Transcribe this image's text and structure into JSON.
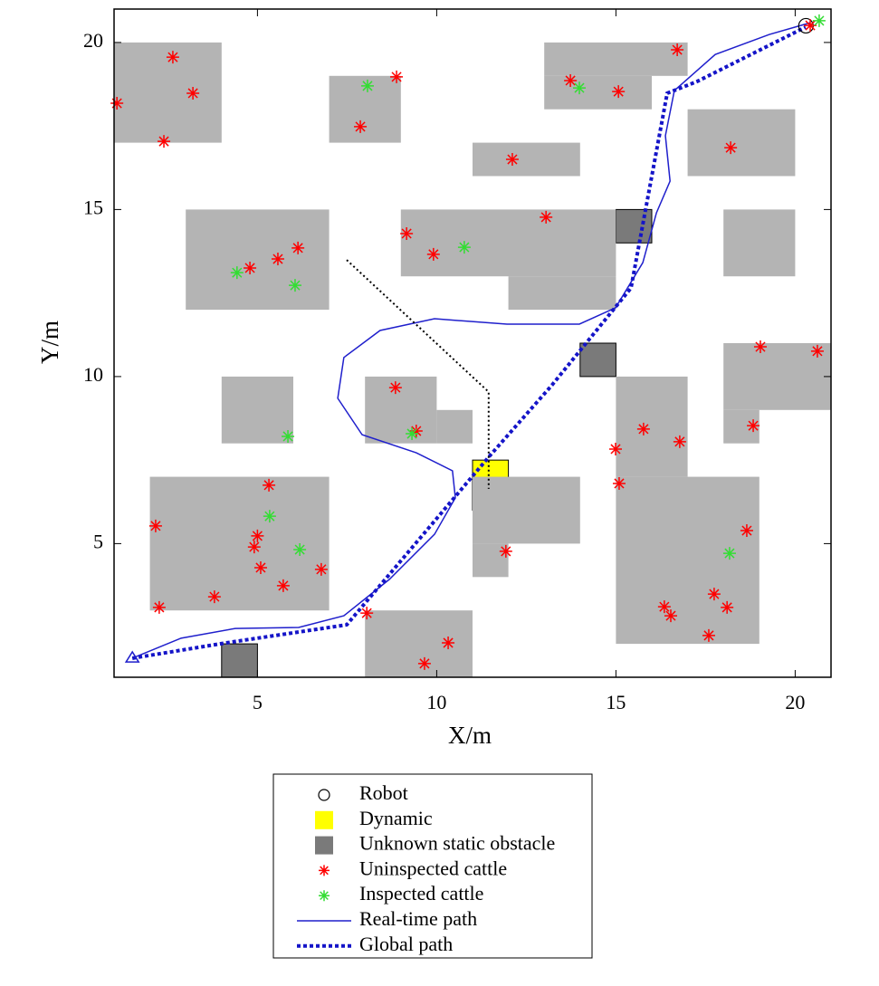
{
  "chart_data": {
    "type": "scatter",
    "xlabel": "X/m",
    "ylabel": "Y/m",
    "xlim": [
      1,
      21
    ],
    "ylim": [
      1,
      21
    ],
    "xticks": [
      5,
      10,
      15,
      20
    ],
    "yticks": [
      5,
      10,
      15,
      20
    ],
    "legend": "bottom",
    "series": [
      {
        "name": "Robot",
        "color": "#000000",
        "marker": "circle",
        "x": [
          20.3
        ],
        "y": [
          20.5
        ]
      },
      {
        "name": "Dynamic",
        "color": "#ffff00",
        "marker": "rect",
        "rects": [
          [
            11,
            6,
            12,
            7.5
          ]
        ]
      },
      {
        "name": "Unknown static obstacle",
        "color": "#7a7a7a",
        "marker": "rect",
        "rects": [
          [
            15,
            14,
            16,
            15
          ],
          [
            14,
            10,
            15,
            11
          ],
          [
            4,
            1,
            5,
            2
          ]
        ]
      },
      {
        "name": "Uninspected cattle",
        "color": "#ff0000",
        "marker": "asterisk",
        "x": [
          2.64,
          1.08,
          3.2,
          2.39,
          8.88,
          7.87,
          13.73,
          15.07,
          16.71,
          12.11,
          18.2,
          6.13,
          5.57,
          4.79,
          9.16,
          9.91,
          13.05,
          19.03,
          20.62,
          8.85,
          9.43,
          15.77,
          14.99,
          16.78,
          18.83,
          15.09,
          5.32,
          2.16,
          5.0,
          4.91,
          5.09,
          5.72,
          6.78,
          3.8,
          2.26,
          11.93,
          18.65,
          16.35,
          16.53,
          17.74,
          18.1,
          17.59,
          8.05,
          10.32,
          9.66,
          20.42
        ],
        "y": [
          19.56,
          18.18,
          18.48,
          17.04,
          18.97,
          17.48,
          18.86,
          18.53,
          19.78,
          16.5,
          16.85,
          13.85,
          13.52,
          13.25,
          14.28,
          13.66,
          14.77,
          10.89,
          10.76,
          9.67,
          8.37,
          8.43,
          7.83,
          8.05,
          8.53,
          6.8,
          6.75,
          5.53,
          5.23,
          4.9,
          4.28,
          3.74,
          4.23,
          3.41,
          3.09,
          4.77,
          5.39,
          3.11,
          2.84,
          3.49,
          3.09,
          2.25,
          2.92,
          2.03,
          1.41,
          20.51
        ]
      },
      {
        "name": "Inspected cattle",
        "color": "#33dd33",
        "marker": "asterisk",
        "x": [
          8.07,
          13.98,
          10.77,
          4.43,
          6.05,
          5.85,
          9.31,
          5.34,
          6.18,
          18.17,
          20.67
        ],
        "y": [
          18.7,
          18.64,
          13.87,
          13.11,
          12.73,
          8.21,
          8.29,
          5.82,
          4.82,
          4.71,
          20.65
        ]
      },
      {
        "name": "Real-time path",
        "color": "#1f1fcc",
        "line": "solid",
        "linewidth": 1.5,
        "x": [
          1.51,
          2.87,
          4.38,
          6.15,
          7.41,
          8.68,
          9.94,
          10.52,
          10.44,
          9.43,
          7.92,
          7.24,
          7.41,
          8.42,
          9.94,
          11.96,
          13.98,
          14.99,
          15.75,
          16.13,
          16.51,
          16.38,
          16.63,
          17.77,
          19.28,
          20.42
        ],
        "y": [
          1.57,
          2.17,
          2.46,
          2.49,
          2.84,
          3.93,
          5.28,
          6.37,
          7.18,
          7.72,
          8.26,
          9.35,
          10.57,
          11.38,
          11.73,
          11.57,
          11.57,
          12.06,
          13.41,
          14.9,
          15.85,
          17.21,
          18.56,
          19.64,
          20.24,
          20.59
        ]
      },
      {
        "name": "Global path",
        "color": "#1414c8",
        "line": "dotted",
        "linewidth": 4,
        "x": [
          1.51,
          4.13,
          7.49,
          11.45,
          13.22,
          15.42,
          16.43,
          17.26,
          20.29
        ],
        "y": [
          1.57,
          2.03,
          2.57,
          7.59,
          9.75,
          12.65,
          18.48,
          18.83,
          20.46
        ]
      },
      {
        "color": "#b4b4b4",
        "marker": "rect",
        "rects": [
          [
            1,
            17,
            4,
            20
          ],
          [
            7,
            17,
            9,
            19
          ],
          [
            13,
            19,
            17,
            20
          ],
          [
            13,
            18,
            16,
            19
          ],
          [
            11,
            16,
            14,
            17
          ],
          [
            17,
            16,
            20,
            18
          ],
          [
            3,
            12,
            7,
            15
          ],
          [
            9,
            13,
            15,
            15
          ],
          [
            12,
            12,
            15,
            13
          ],
          [
            18,
            13,
            20,
            15
          ],
          [
            4,
            8,
            6,
            10
          ],
          [
            8,
            8,
            10,
            10
          ],
          [
            10,
            8,
            11,
            9
          ],
          [
            18,
            9,
            21,
            11
          ],
          [
            18,
            8,
            19,
            9
          ],
          [
            2,
            3,
            7,
            7
          ],
          [
            11,
            5,
            14,
            7
          ],
          [
            11,
            4,
            12,
            5
          ],
          [
            15,
            7,
            17,
            10
          ],
          [
            15,
            2,
            19,
            7
          ],
          [
            8,
            1,
            11,
            3
          ]
        ]
      },
      {
        "color": "#000000",
        "line": "dotted",
        "linewidth": 2,
        "x": [
          7.49,
          11.45,
          11.45
        ],
        "y": [
          13.49,
          9.54,
          6.64
        ]
      },
      {
        "color": "#1f1fcc",
        "marker": "triangle",
        "x": [
          1.51
        ],
        "y": [
          1.57
        ]
      }
    ]
  }
}
